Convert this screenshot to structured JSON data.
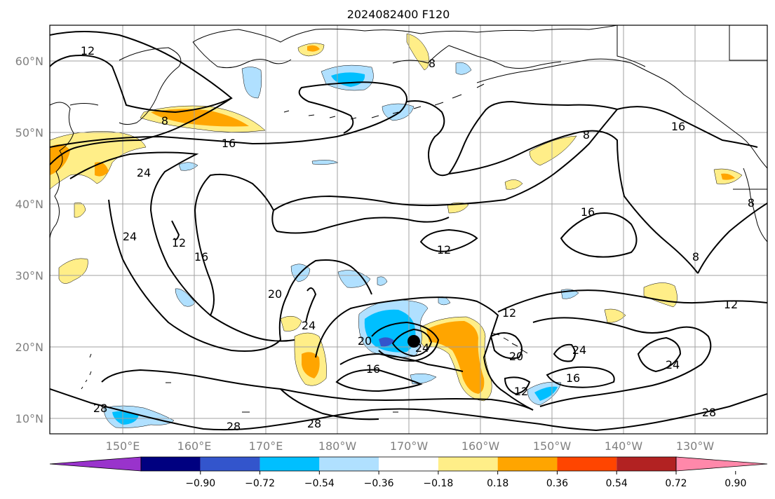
{
  "title": "2024082400 F120",
  "lat_ticks": [
    "10°N",
    "20°N",
    "30°N",
    "40°N",
    "50°N",
    "60°N"
  ],
  "lon_ticks": [
    "150°E",
    "160°E",
    "170°E",
    "180°W",
    "170°W",
    "160°W",
    "150°W",
    "140°W",
    "130°W"
  ],
  "colorbar": {
    "tick_labels": [
      "−0.90",
      "−0.72",
      "−0.54",
      "−0.36",
      "−0.18",
      "0.18",
      "0.36",
      "0.54",
      "0.72",
      "0.90"
    ],
    "colors": [
      "#9933cc",
      "#000080",
      "#3355cc",
      "#00bfff",
      "#b0e0ff",
      "#ffffff",
      "#ffee88",
      "#ffa500",
      "#ff4500",
      "#b22222",
      "#ff88aa"
    ]
  },
  "contour_labels": [
    {
      "text": "12"
    },
    {
      "text": "8"
    },
    {
      "text": "16"
    },
    {
      "text": "24"
    },
    {
      "text": "8"
    },
    {
      "text": "12"
    },
    {
      "text": "24"
    },
    {
      "text": "16"
    },
    {
      "text": "16"
    },
    {
      "text": "8"
    },
    {
      "text": "20"
    },
    {
      "text": "24"
    },
    {
      "text": "12"
    },
    {
      "text": "12"
    },
    {
      "text": "12"
    },
    {
      "text": "16"
    },
    {
      "text": "8"
    },
    {
      "text": "20"
    },
    {
      "text": "24"
    },
    {
      "text": "24"
    },
    {
      "text": "20"
    },
    {
      "text": "16"
    },
    {
      "text": "12"
    },
    {
      "text": "16"
    },
    {
      "text": "24"
    },
    {
      "text": "28"
    },
    {
      "text": "28"
    },
    {
      "text": "28"
    },
    {
      "text": "28"
    },
    {
      "text": "8"
    }
  ]
}
